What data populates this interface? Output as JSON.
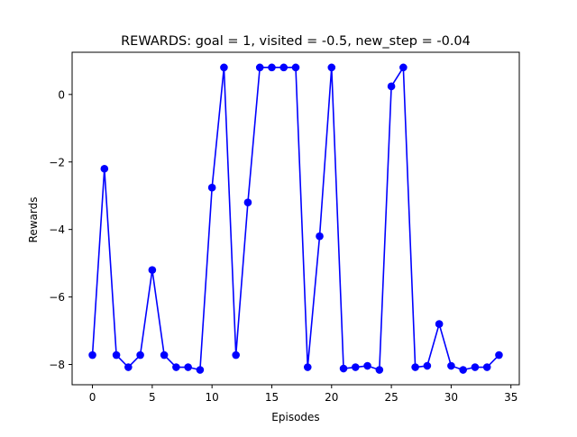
{
  "chart_data": {
    "type": "line",
    "title": "REWARDS: goal = 1, visited = -0.5, new_step = -0.04",
    "xlabel": "Episodes",
    "ylabel": "Rewards",
    "xlim": [
      -1.7,
      35.7
    ],
    "ylim": [
      -8.6,
      1.25
    ],
    "xticks": [
      0,
      5,
      10,
      15,
      20,
      25,
      30,
      35
    ],
    "yticks": [
      -8,
      -6,
      -4,
      -2,
      0
    ],
    "grid": false,
    "legend": "none",
    "series": [
      {
        "color": "#0000ff",
        "marker": "circle",
        "x": [
          0,
          1,
          2,
          3,
          4,
          5,
          6,
          7,
          8,
          9,
          10,
          11,
          12,
          13,
          14,
          15,
          16,
          17,
          18,
          19,
          20,
          21,
          22,
          23,
          24,
          25,
          26,
          27,
          28,
          29,
          30,
          31,
          32,
          33,
          34
        ],
        "values": [
          -7.72,
          -2.2,
          -7.72,
          -8.08,
          -7.72,
          -5.2,
          -7.72,
          -8.08,
          -8.08,
          -8.16,
          -2.76,
          0.8,
          -7.72,
          -3.2,
          0.8,
          0.8,
          0.8,
          0.8,
          -8.08,
          -4.2,
          0.8,
          -8.12,
          -8.08,
          -8.04,
          -8.16,
          0.24,
          0.8,
          -8.08,
          -8.04,
          -6.8,
          -8.04,
          -8.16,
          -8.08,
          -8.08,
          -7.72
        ]
      }
    ]
  }
}
